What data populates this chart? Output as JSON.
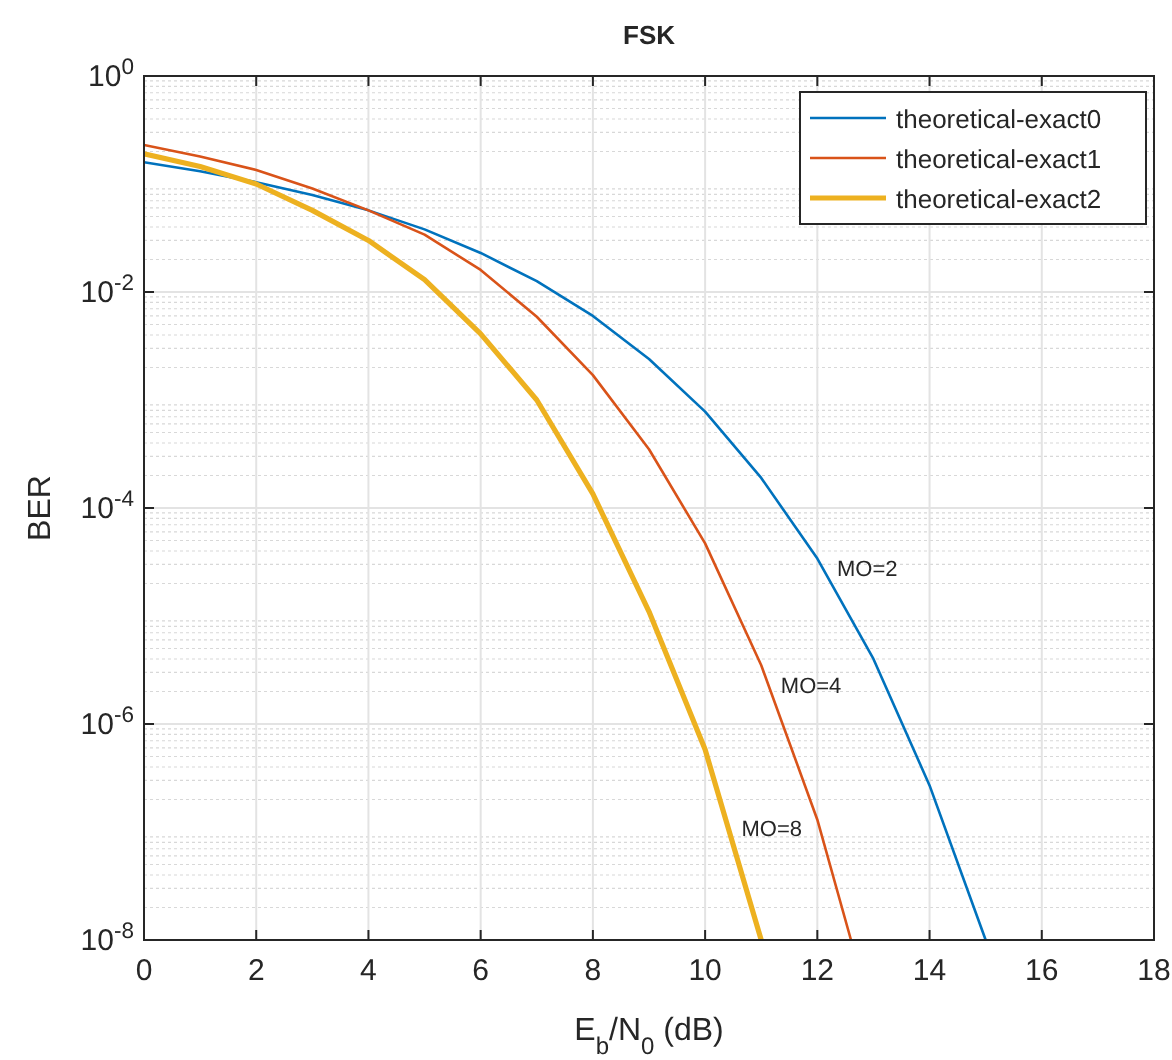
{
  "chart_data": {
    "type": "line",
    "title": "FSK",
    "xlabel": "E$_{b}$/N$_{0}$ (dB)",
    "ylabel": "BER",
    "log": "y",
    "grid": true,
    "legend": "top right",
    "line_style": "solid",
    "marker": "none",
    "xlim": [
      0,
      18
    ],
    "xticks": [
      0,
      2,
      4,
      6,
      8,
      10,
      12,
      14,
      16,
      18
    ],
    "ylim": [
      1e-08,
      1
    ],
    "yticks": [
      {
        "value": 1e-08,
        "label": "10$^{-8}$"
      },
      {
        "value": 1e-06,
        "label": "10$^{-6}$"
      },
      {
        "value": 0.0001,
        "label": "10$^{-4}$"
      },
      {
        "value": 0.01,
        "label": "10$^{-2}$"
      },
      {
        "value": 1,
        "label": "10$^{0}$"
      }
    ],
    "series": [
      {
        "name": "theoretical-exact0",
        "color": "#0072bd",
        "x": [
          0,
          1,
          2,
          3,
          4,
          5,
          6,
          7,
          8,
          9,
          10,
          11,
          12,
          13,
          14,
          15
        ],
        "values": [
          0.159,
          0.131,
          0.104,
          0.079,
          0.057,
          0.038,
          0.023,
          0.0126,
          0.006,
          0.0024,
          0.00078,
          0.00019,
          3.4e-05,
          4e-06,
          2.7e-07,
          1e-08
        ]
      },
      {
        "name": "theoretical-exact1",
        "color": "#d95319",
        "x": [
          0,
          1,
          2,
          3,
          4,
          5,
          6,
          7,
          8,
          9,
          10,
          11,
          12,
          12.6
        ],
        "values": [
          0.23,
          0.18,
          0.135,
          0.091,
          0.057,
          0.034,
          0.016,
          0.0059,
          0.0017,
          0.00035,
          4.7e-05,
          3.5e-06,
          1.3e-07,
          1e-08
        ]
      },
      {
        "name": "theoretical-exact2",
        "color": "#edb120",
        "x": [
          0,
          1,
          2,
          3,
          4,
          5,
          6,
          7,
          8,
          9,
          10,
          11
        ],
        "values": [
          0.19,
          0.145,
          0.1,
          0.057,
          0.03,
          0.013,
          0.0041,
          0.001,
          0.000135,
          1.1e-05,
          5.8e-07,
          1e-08
        ]
      }
    ],
    "annotations": [
      {
        "text": "MO=2",
        "x": 12.1,
        "y": 2.8e-05
      },
      {
        "text": "MO=4",
        "x": 11.1,
        "y": 2.3e-06
      },
      {
        "text": "MO=8",
        "x": 10.4,
        "y": 1.1e-07
      }
    ]
  }
}
